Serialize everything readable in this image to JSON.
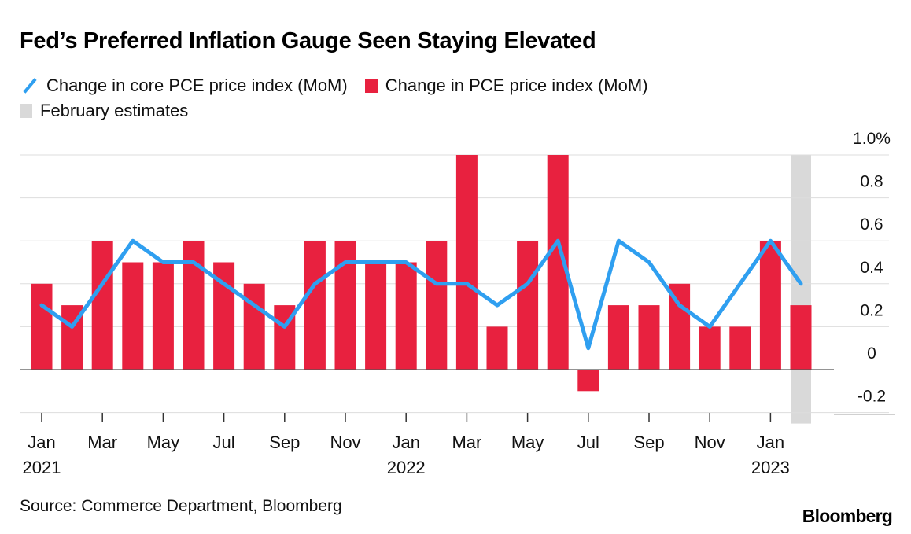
{
  "title": "Fed’s Preferred Inflation Gauge Seen Staying Elevated",
  "legend": [
    {
      "label": "Change in core PCE price index (MoM)",
      "icon": "line-swatch-icon",
      "color": "#2f9ff0"
    },
    {
      "label": "Change in PCE price index (MoM)",
      "icon": "bar-swatch-icon",
      "color": "#e8213f"
    },
    {
      "label": "February estimates",
      "icon": "shade-swatch-icon",
      "color": "#d9d9d9"
    }
  ],
  "source": "Source: Commerce Department, Bloomberg",
  "brand": "Bloomberg",
  "chart_data": {
    "type": "bar",
    "categories": [
      "2021-01",
      "2021-02",
      "2021-03",
      "2021-04",
      "2021-05",
      "2021-06",
      "2021-07",
      "2021-08",
      "2021-09",
      "2021-10",
      "2021-11",
      "2021-12",
      "2022-01",
      "2022-02",
      "2022-03",
      "2022-04",
      "2022-05",
      "2022-06",
      "2022-07",
      "2022-08",
      "2022-09",
      "2022-10",
      "2022-11",
      "2022-12",
      "2023-01",
      "2023-02"
    ],
    "x_tick_labels": [
      {
        "index": 0,
        "month": "Jan",
        "year": "2021"
      },
      {
        "index": 2,
        "month": "Mar",
        "year": ""
      },
      {
        "index": 4,
        "month": "May",
        "year": ""
      },
      {
        "index": 6,
        "month": "Jul",
        "year": ""
      },
      {
        "index": 8,
        "month": "Sep",
        "year": ""
      },
      {
        "index": 10,
        "month": "Nov",
        "year": ""
      },
      {
        "index": 12,
        "month": "Jan",
        "year": "2022"
      },
      {
        "index": 14,
        "month": "Mar",
        "year": ""
      },
      {
        "index": 16,
        "month": "May",
        "year": ""
      },
      {
        "index": 18,
        "month": "Jul",
        "year": ""
      },
      {
        "index": 20,
        "month": "Sep",
        "year": ""
      },
      {
        "index": 22,
        "month": "Nov",
        "year": ""
      },
      {
        "index": 24,
        "month": "Jan",
        "year": "2023"
      }
    ],
    "series": [
      {
        "name": "Change in PCE price index (MoM)",
        "kind": "bar",
        "color": "#e8213f",
        "values": [
          0.4,
          0.3,
          0.6,
          0.5,
          0.5,
          0.6,
          0.5,
          0.4,
          0.3,
          0.6,
          0.6,
          0.5,
          0.5,
          0.6,
          1.0,
          0.2,
          0.6,
          1.0,
          -0.1,
          0.3,
          0.3,
          0.4,
          0.2,
          0.2,
          0.6,
          0.3
        ]
      },
      {
        "name": "Change in core PCE price index (MoM)",
        "kind": "line",
        "color": "#2f9ff0",
        "values": [
          0.3,
          0.2,
          0.4,
          0.6,
          0.5,
          0.5,
          0.4,
          0.3,
          0.2,
          0.4,
          0.5,
          0.5,
          0.5,
          0.4,
          0.4,
          0.3,
          0.4,
          0.6,
          0.1,
          0.6,
          0.5,
          0.3,
          0.2,
          0.4,
          0.6,
          0.4
        ]
      }
    ],
    "shaded_category": "2023-02",
    "shade_label": "February estimates",
    "y_ticks": [
      {
        "value": 1.0,
        "label": "1.0%"
      },
      {
        "value": 0.8,
        "label": "0.8"
      },
      {
        "value": 0.6,
        "label": "0.6"
      },
      {
        "value": 0.4,
        "label": "0.4"
      },
      {
        "value": 0.2,
        "label": "0.2"
      },
      {
        "value": 0.0,
        "label": "0"
      },
      {
        "value": -0.2,
        "label": "-0.2"
      }
    ],
    "ylim": [
      -0.2,
      1.0
    ],
    "y_axis_position": "right",
    "grid": true
  }
}
